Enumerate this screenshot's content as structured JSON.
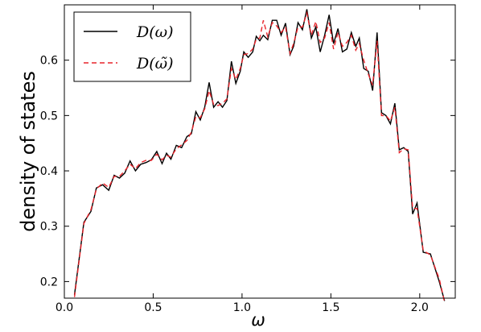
{
  "chart_data": {
    "type": "line",
    "title": "",
    "xlabel": "ω",
    "ylabel": "density of states",
    "xlim": [
      0.0,
      2.2
    ],
    "ylim": [
      0.17,
      0.7
    ],
    "xticks": [
      0.0,
      0.5,
      1.0,
      1.5,
      2.0
    ],
    "xtick_labels": [
      "0.0",
      "0.5",
      "1.0",
      "1.5",
      "2.0"
    ],
    "yticks": [
      0.2,
      0.3,
      0.4,
      0.5,
      0.6
    ],
    "ytick_labels": [
      "0.2",
      "0.3",
      "0.4",
      "0.5",
      "0.6"
    ],
    "grid": false,
    "legend_position": "upper-left",
    "series": [
      {
        "name": "D(ω)",
        "color": "#000000",
        "style": "solid",
        "x": [
          0.057,
          0.11,
          0.15,
          0.18,
          0.215,
          0.25,
          0.28,
          0.31,
          0.34,
          0.37,
          0.4,
          0.43,
          0.46,
          0.49,
          0.52,
          0.55,
          0.575,
          0.6,
          0.63,
          0.66,
          0.69,
          0.715,
          0.74,
          0.765,
          0.79,
          0.815,
          0.84,
          0.865,
          0.89,
          0.915,
          0.94,
          0.965,
          0.99,
          1.01,
          1.035,
          1.06,
          1.08,
          1.1,
          1.12,
          1.145,
          1.17,
          1.195,
          1.22,
          1.245,
          1.27,
          1.29,
          1.315,
          1.34,
          1.365,
          1.39,
          1.415,
          1.44,
          1.465,
          1.49,
          1.515,
          1.54,
          1.565,
          1.59,
          1.615,
          1.64,
          1.66,
          1.685,
          1.71,
          1.735,
          1.76,
          1.785,
          1.81,
          1.835,
          1.86,
          1.885,
          1.91,
          1.935,
          1.96,
          1.985,
          2.02,
          2.06,
          2.11,
          2.14
        ],
        "values": [
          0.176,
          0.307,
          0.327,
          0.369,
          0.375,
          0.365,
          0.392,
          0.387,
          0.396,
          0.418,
          0.4,
          0.412,
          0.415,
          0.42,
          0.435,
          0.413,
          0.432,
          0.421,
          0.446,
          0.442,
          0.462,
          0.467,
          0.507,
          0.492,
          0.515,
          0.56,
          0.515,
          0.525,
          0.515,
          0.527,
          0.598,
          0.558,
          0.58,
          0.615,
          0.605,
          0.615,
          0.643,
          0.635,
          0.645,
          0.637,
          0.672,
          0.672,
          0.645,
          0.667,
          0.61,
          0.625,
          0.668,
          0.655,
          0.692,
          0.64,
          0.66,
          0.615,
          0.645,
          0.682,
          0.63,
          0.657,
          0.615,
          0.62,
          0.65,
          0.625,
          0.64,
          0.585,
          0.58,
          0.545,
          0.65,
          0.505,
          0.5,
          0.485,
          0.522,
          0.438,
          0.442,
          0.435,
          0.322,
          0.342,
          0.253,
          0.25,
          0.2,
          0.165
        ]
      },
      {
        "name": "D(ω̃)",
        "color": "#e8242b",
        "style": "dashed",
        "x": [
          0.057,
          0.11,
          0.15,
          0.18,
          0.215,
          0.25,
          0.28,
          0.31,
          0.34,
          0.37,
          0.4,
          0.43,
          0.46,
          0.49,
          0.52,
          0.55,
          0.575,
          0.6,
          0.63,
          0.66,
          0.69,
          0.715,
          0.74,
          0.765,
          0.79,
          0.815,
          0.84,
          0.865,
          0.89,
          0.915,
          0.94,
          0.965,
          0.99,
          1.01,
          1.035,
          1.06,
          1.08,
          1.1,
          1.12,
          1.145,
          1.17,
          1.195,
          1.22,
          1.245,
          1.27,
          1.29,
          1.315,
          1.34,
          1.365,
          1.39,
          1.415,
          1.44,
          1.465,
          1.49,
          1.515,
          1.54,
          1.565,
          1.59,
          1.615,
          1.64,
          1.66,
          1.685,
          1.71,
          1.735,
          1.76,
          1.785,
          1.81,
          1.835,
          1.86,
          1.885,
          1.91,
          1.935,
          1.96,
          1.985,
          2.02,
          2.06,
          2.11,
          2.14
        ],
        "values": [
          0.172,
          0.305,
          0.33,
          0.367,
          0.378,
          0.37,
          0.39,
          0.39,
          0.4,
          0.412,
          0.404,
          0.415,
          0.419,
          0.419,
          0.43,
          0.42,
          0.428,
          0.425,
          0.44,
          0.447,
          0.455,
          0.47,
          0.498,
          0.496,
          0.512,
          0.545,
          0.52,
          0.518,
          0.522,
          0.53,
          0.585,
          0.565,
          0.585,
          0.61,
          0.612,
          0.62,
          0.638,
          0.64,
          0.672,
          0.642,
          0.668,
          0.662,
          0.65,
          0.66,
          0.612,
          0.63,
          0.66,
          0.66,
          0.685,
          0.645,
          0.67,
          0.632,
          0.64,
          0.668,
          0.62,
          0.65,
          0.625,
          0.632,
          0.645,
          0.618,
          0.63,
          0.6,
          0.575,
          0.555,
          0.635,
          0.5,
          0.5,
          0.49,
          0.515,
          0.433,
          0.44,
          0.438,
          0.332,
          0.332,
          0.256,
          0.248,
          0.205,
          0.163
        ]
      }
    ]
  }
}
